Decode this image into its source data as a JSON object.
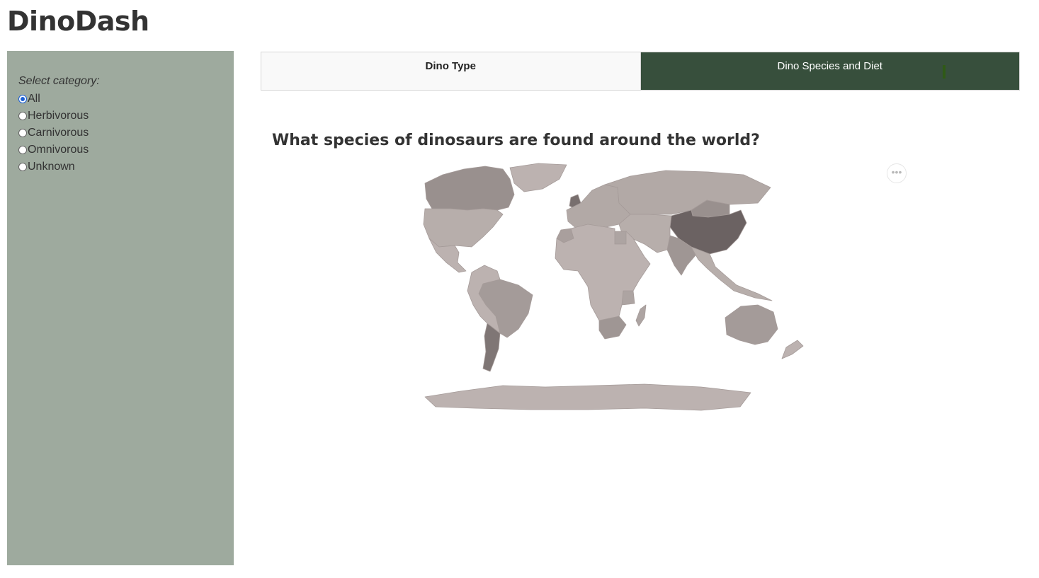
{
  "app": {
    "title": "DinoDash"
  },
  "sidebar": {
    "heading": "Select category:",
    "options": [
      {
        "label": "All",
        "checked": true
      },
      {
        "label": "Herbivorous",
        "checked": false
      },
      {
        "label": "Carnivorous",
        "checked": false
      },
      {
        "label": "Omnivorous",
        "checked": false
      },
      {
        "label": "Unknown",
        "checked": false
      }
    ]
  },
  "tabs": [
    {
      "label": "Dino Type",
      "active": false
    },
    {
      "label": "Dino Species and Diet",
      "active": true
    }
  ],
  "main": {
    "chart_title": "What species of dinosaurs are found around the world?",
    "modebar_icon": "ellipsis-icon",
    "modebar_glyph": "•••"
  },
  "colors": {
    "sidebar_bg": "#9eaa9e",
    "active_tab_bg": "#374f3c",
    "radio_accent": "#1a5fd6",
    "map_low": "#cfc5c2",
    "map_mid": "#9f9694",
    "map_high": "#5e5555",
    "map_border": "#a59b99"
  },
  "chart_data": {
    "type": "choropleth",
    "scale": "relative species count (0 = fewest, 1 = most)",
    "regions": [
      {
        "name": "Canada",
        "level": 0.55
      },
      {
        "name": "United States",
        "level": 0.25
      },
      {
        "name": "Mexico",
        "level": 0.2
      },
      {
        "name": "Greenland",
        "level": 0.2
      },
      {
        "name": "Brazil",
        "level": 0.45
      },
      {
        "name": "Argentina",
        "level": 0.75
      },
      {
        "name": "South America (other)",
        "level": 0.2
      },
      {
        "name": "United Kingdom",
        "level": 0.8
      },
      {
        "name": "Europe (other)",
        "level": 0.3
      },
      {
        "name": "Russia",
        "level": 0.3
      },
      {
        "name": "Mongolia",
        "level": 0.55
      },
      {
        "name": "China",
        "level": 0.9
      },
      {
        "name": "India",
        "level": 0.5
      },
      {
        "name": "Asia (other)",
        "level": 0.25
      },
      {
        "name": "Niger",
        "level": 0.55
      },
      {
        "name": "Morocco",
        "level": 0.4
      },
      {
        "name": "Egypt",
        "level": 0.35
      },
      {
        "name": "Tanzania",
        "level": 0.35
      },
      {
        "name": "South Africa",
        "level": 0.5
      },
      {
        "name": "Madagascar",
        "level": 0.35
      },
      {
        "name": "Africa (other)",
        "level": 0.2
      },
      {
        "name": "Australia",
        "level": 0.45
      },
      {
        "name": "New Zealand",
        "level": 0.2
      },
      {
        "name": "Antarctica",
        "level": 0.2
      }
    ]
  }
}
